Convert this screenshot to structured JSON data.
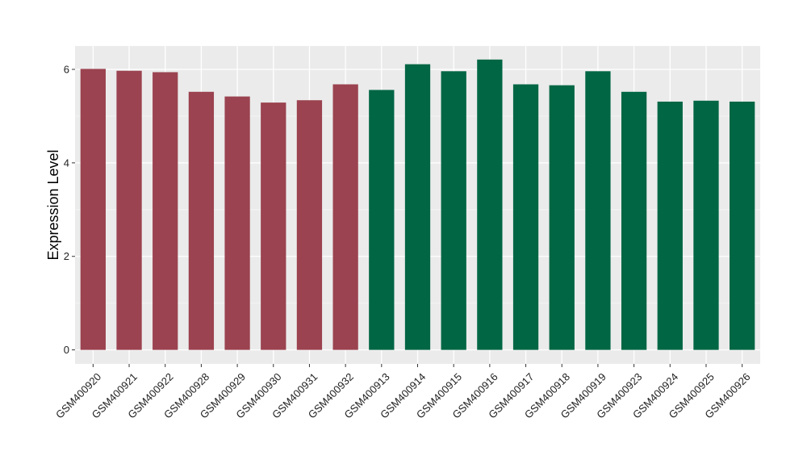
{
  "chart_data": {
    "type": "bar",
    "ylabel": "Expression Level",
    "xlabel": "",
    "ylim": [
      -0.3,
      6.5
    ],
    "yticks": [
      0,
      2,
      4,
      6
    ],
    "grid": true,
    "colors": {
      "panel_background": "#ebebeb",
      "grid_major": "#ffffff",
      "grid_minor": "#f5f5f5",
      "group_a": "#9b4350",
      "group_b": "#006644"
    },
    "categories": [
      "GSM400920",
      "GSM400921",
      "GSM400922",
      "GSM400928",
      "GSM400929",
      "GSM400930",
      "GSM400931",
      "GSM400932",
      "GSM400913",
      "GSM400914",
      "GSM400915",
      "GSM400916",
      "GSM400917",
      "GSM400918",
      "GSM400919",
      "GSM400923",
      "GSM400924",
      "GSM400925",
      "GSM400926"
    ],
    "values": [
      6.01,
      5.97,
      5.94,
      5.52,
      5.42,
      5.29,
      5.34,
      5.68,
      5.56,
      6.11,
      5.96,
      6.21,
      5.68,
      5.66,
      5.96,
      5.52,
      5.31,
      5.33,
      5.31
    ],
    "groups": [
      "a",
      "a",
      "a",
      "a",
      "a",
      "a",
      "a",
      "a",
      "b",
      "b",
      "b",
      "b",
      "b",
      "b",
      "b",
      "b",
      "b",
      "b",
      "b"
    ]
  }
}
